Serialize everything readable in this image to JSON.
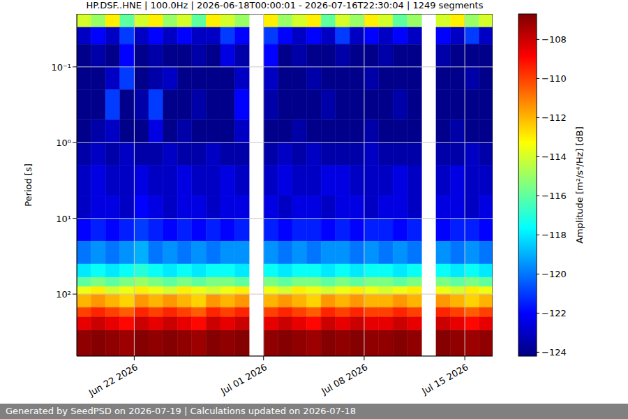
{
  "chart_data": {
    "type": "heatmap",
    "title": "HP.DSF..HNE | 100.0Hz | 2026-06-18T00:00:01 - 2026-07-16T22:30:04 | 1249 segments",
    "ylabel": "Period [s]",
    "log": "y",
    "grid": true,
    "x": [
      "2026-06-18",
      "2026-06-19",
      "2026-06-20",
      "2026-06-21",
      "2026-06-22",
      "2026-06-23",
      "2026-06-24",
      "2026-06-25",
      "2026-06-26",
      "2026-06-27",
      "2026-06-28",
      "2026-06-29",
      "2026-06-30",
      "2026-07-01",
      "2026-07-02",
      "2026-07-03",
      "2026-07-04",
      "2026-07-05",
      "2026-07-06",
      "2026-07-07",
      "2026-07-08",
      "2026-07-09",
      "2026-07-10",
      "2026-07-11",
      "2026-07-12",
      "2026-07-13",
      "2026-07-14",
      "2026-07-15",
      "2026-07-16"
    ],
    "xlim": [
      "2026-06-18T00:00:01",
      "2026-07-16T22:30:04"
    ],
    "xticks": [
      {
        "value": "2026-06-22",
        "label": "Jun 22 2026"
      },
      {
        "value": "2026-07-01",
        "label": "Jul 01 2026"
      },
      {
        "value": "2026-07-08",
        "label": "Jul 08 2026"
      },
      {
        "value": "2026-07-15",
        "label": "Jul 15 2026"
      }
    ],
    "ylim": [
      0.02,
      660
    ],
    "yticks": [
      {
        "value": 0.1,
        "label": "10⁻¹"
      },
      {
        "value": 1,
        "label": "10⁰"
      },
      {
        "value": 10,
        "label": "10¹"
      },
      {
        "value": 100,
        "label": "10²"
      }
    ],
    "periods": [
      0.02,
      0.03,
      0.05,
      0.1,
      0.2,
      0.5,
      1,
      2,
      5,
      10,
      20,
      40,
      60,
      80,
      100,
      150,
      200,
      300,
      660
    ],
    "cells": [
      [
        -114,
        -115,
        -113,
        -116,
        -114,
        -113,
        -115,
        -114,
        -116,
        -113,
        -114,
        -115,
        null,
        -113,
        -115,
        -114,
        -113,
        -116,
        -114,
        -115,
        -113,
        -114,
        -116,
        -115,
        null,
        -114,
        -113,
        -115,
        -114
      ],
      [
        -123,
        -122,
        -123,
        -121,
        -123,
        -122,
        -123,
        -122,
        -123,
        -123,
        -121,
        -122,
        null,
        -121,
        -122,
        -123,
        -122,
        -123,
        -121,
        -123,
        -122,
        -123,
        -122,
        -123,
        null,
        -122,
        -123,
        -121,
        -123
      ],
      [
        -124,
        -123.5,
        -124,
        -122,
        -124,
        -123.5,
        -124,
        -124,
        -123.5,
        -124,
        -122.5,
        -123.5,
        null,
        -122,
        -124,
        -123.5,
        -124,
        -124,
        -123.5,
        -124,
        -124,
        -123.5,
        -124,
        -124,
        null,
        -123.5,
        -124,
        -124,
        -124
      ],
      [
        -124,
        -124,
        -123,
        -121,
        -124,
        -123.5,
        -123,
        -124,
        -124,
        -124,
        -124,
        -123,
        null,
        -123,
        -124,
        -124,
        -123.5,
        -124,
        -124,
        -124,
        -123.5,
        -124,
        -124,
        -124,
        null,
        -124,
        -124,
        -123.5,
        -124
      ],
      [
        -124,
        -124,
        -121,
        -124,
        -123.5,
        -121,
        -124,
        -124,
        -123.5,
        -124,
        -124,
        -122,
        null,
        -123.5,
        -124,
        -124,
        -124,
        -123.5,
        -124,
        -124,
        -124,
        -124,
        -123.5,
        -124,
        null,
        -124,
        -124,
        -124,
        -124
      ],
      [
        -124,
        -123.5,
        -123,
        -124,
        -124,
        -122.5,
        -124,
        -123.5,
        -124,
        -124,
        -124,
        -123,
        null,
        -124,
        -124,
        -123.5,
        -124,
        -124,
        -124,
        -124,
        -123.5,
        -124,
        -124,
        -124,
        null,
        -124,
        -123.5,
        -124,
        -124
      ],
      [
        -123.5,
        -123,
        -123.5,
        -123,
        -123.5,
        -123.5,
        -123,
        -123.5,
        -123.5,
        -123,
        -123.5,
        -123.5,
        null,
        -123.5,
        -123,
        -123.5,
        -123,
        -123.5,
        -123.5,
        -123.5,
        -123,
        -123.5,
        -123.5,
        -123.5,
        null,
        -123.5,
        -123.5,
        -123,
        -123.5
      ],
      [
        -123,
        -122.5,
        -123,
        -123,
        -122.5,
        -123,
        -123,
        -122.5,
        -123,
        -123,
        -122.5,
        -123,
        null,
        -123,
        -122.5,
        -123,
        -123,
        -122.5,
        -122.5,
        -123,
        -123,
        -123,
        -122.5,
        -123,
        null,
        -123,
        -122.5,
        -123,
        -123
      ],
      [
        -123,
        -122.5,
        -122.5,
        -123,
        -122,
        -122.5,
        -123,
        -122.5,
        -122.5,
        -123,
        -122.5,
        -122.5,
        null,
        -122.5,
        -123,
        -122.5,
        -122.5,
        -123,
        -122.5,
        -122.5,
        -123,
        -122.5,
        -122.5,
        -123,
        null,
        -122.5,
        -122.5,
        -123,
        -122.5
      ],
      [
        -122,
        -121.5,
        -122,
        -121.5,
        -121,
        -121.5,
        -122,
        -121.5,
        -122,
        -121.5,
        -122,
        -121.5,
        null,
        -121.5,
        -122,
        -121.5,
        -121.5,
        -122,
        -121.5,
        -122,
        -121.5,
        -121.5,
        -122,
        -121.5,
        null,
        -122,
        -121.5,
        -121.5,
        -122
      ],
      [
        -120,
        -119.5,
        -120,
        -119.5,
        -119,
        -120,
        -119.5,
        -120,
        -119.5,
        -120,
        -119.5,
        -119.5,
        null,
        -119.5,
        -120,
        -119.5,
        -120,
        -119.5,
        -119.5,
        -120,
        -119.5,
        -120,
        -119.5,
        -120,
        null,
        -119.5,
        -120,
        -119.5,
        -120
      ],
      [
        -118,
        -117.5,
        -118,
        -117.5,
        -117,
        -117.5,
        -118,
        -117.5,
        -118,
        -117.5,
        -117.5,
        -118,
        null,
        -117.5,
        -118,
        -117.5,
        -117.5,
        -118,
        -117.5,
        -118,
        -117.5,
        -117.5,
        -118,
        -117.5,
        null,
        -117.5,
        -118,
        -117.5,
        -118
      ],
      [
        -116,
        -115.5,
        -116,
        -115.5,
        -115,
        -115.5,
        -116,
        -115.5,
        -116,
        -115.5,
        -115.5,
        -116,
        null,
        -115.5,
        -116,
        -115.5,
        -115.5,
        -116,
        -115.5,
        -116,
        -115.5,
        -115.5,
        -116,
        -115.5,
        null,
        -115.5,
        -116,
        -115.5,
        -116
      ],
      [
        -113.5,
        -113,
        -114,
        -113.5,
        -113,
        -113.5,
        -114,
        -113,
        -113.5,
        -114,
        -113.5,
        -113,
        null,
        -113.5,
        -114,
        -113,
        -113.5,
        -114,
        -113.5,
        -113,
        -113.5,
        -114,
        -113.5,
        -113,
        null,
        -113.5,
        -114,
        -113,
        -113.5
      ],
      [
        -112,
        -111.5,
        -112,
        -112.5,
        -111.5,
        -112,
        -111.5,
        -112,
        -112.5,
        -111.5,
        -112,
        -111.5,
        null,
        -112,
        -111.5,
        -112,
        -112.5,
        -111.5,
        -112,
        -111.5,
        -112,
        -112,
        -111.5,
        -112,
        null,
        -111.5,
        -112,
        -112.5,
        -112
      ],
      [
        -110,
        -109.5,
        -110,
        -110.5,
        -109.5,
        -110,
        -109.5,
        -110,
        -110.5,
        -109.5,
        -110,
        -109.5,
        null,
        -110,
        -109.5,
        -110,
        -110.5,
        -109.5,
        -110,
        -109.5,
        -110,
        -110,
        -109.5,
        -110,
        null,
        -109.5,
        -110,
        -110.5,
        -110
      ],
      [
        -108.5,
        -108,
        -108.5,
        -109,
        -108,
        -108.5,
        -108,
        -108.5,
        -109,
        -108,
        -108.5,
        -108,
        null,
        -108.5,
        -108,
        -108.5,
        -109,
        -108,
        -108.5,
        -108,
        -108.5,
        -108.5,
        -108,
        -108.5,
        null,
        -108,
        -108.5,
        -109,
        -108.5
      ],
      [
        -107,
        -106.8,
        -107,
        -107.2,
        -106.8,
        -107,
        -106.8,
        -107,
        -107.2,
        -106.8,
        -107,
        -106.8,
        null,
        -107,
        -106.8,
        -107,
        -107.2,
        -106.8,
        -107,
        -106.8,
        -107,
        -107,
        -106.8,
        -107,
        null,
        -106.8,
        -107,
        -107.2,
        -107
      ]
    ],
    "colorbar": {
      "label": "Amplitude [m²/s⁴/Hz] [dB]",
      "range": [
        -124.2,
        -106.7
      ],
      "ticks": [
        {
          "value": -124,
          "label": "−124"
        },
        {
          "value": -122,
          "label": "−122"
        },
        {
          "value": -120,
          "label": "−120"
        },
        {
          "value": -118,
          "label": "−118"
        },
        {
          "value": -116,
          "label": "−116"
        },
        {
          "value": -114,
          "label": "−114"
        },
        {
          "value": -112,
          "label": "−112"
        },
        {
          "value": -110,
          "label": "−110"
        },
        {
          "value": -108,
          "label": "−108"
        }
      ]
    }
  },
  "footer": "Generated by SeedPSD on 2026-07-19 | Calculations updated on 2026-07-18"
}
